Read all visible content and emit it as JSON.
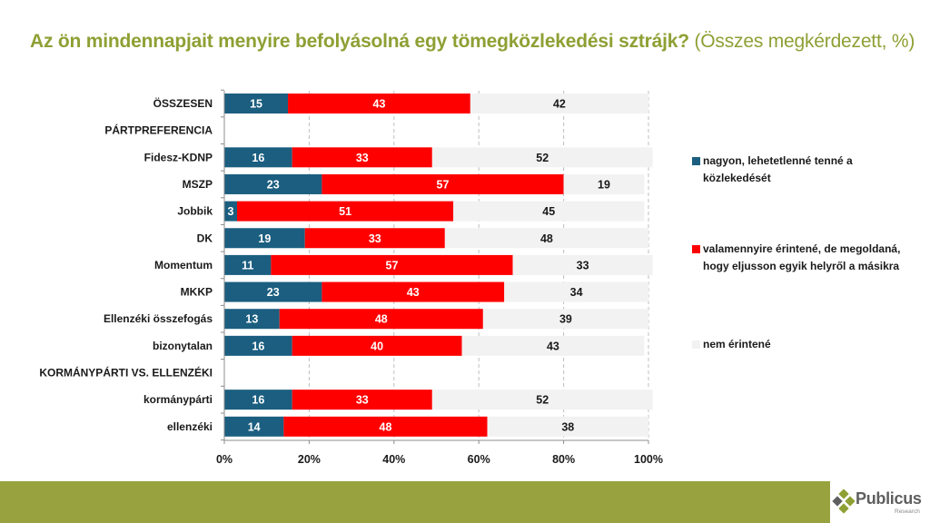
{
  "title": {
    "main": "Az ön mindennapjait menyire befolyásolná egy tömegközlekedési sztrájk?",
    "sub": " (Összes megkérdezett, %)"
  },
  "colors": {
    "title": "#8ea034",
    "series": [
      "#1b5e80",
      "#ff0000",
      "#f2f2f2"
    ],
    "footer": "#98a33f",
    "logo_green": "#8ea034",
    "logo_text": "#5f5f5f"
  },
  "legend": {
    "items": [
      {
        "label": "nagyon, lehetetlenné tenné a közlekedését"
      },
      {
        "label": "valamennyire érintené, de megoldaná, hogy eljusson egyik helyről a másikra"
      },
      {
        "label": "nem érintené"
      }
    ]
  },
  "logo": {
    "name": "Publicus",
    "tagline": "Research"
  },
  "chart_data": {
    "type": "bar",
    "orientation": "horizontal",
    "stacked": "percent",
    "title": "Az ön mindennapjait menyire befolyásolná egy tömegközlekedési sztrájk? (Összes megkérdezett, %)",
    "xlabel": "",
    "ylabel": "",
    "xlim": [
      0,
      100
    ],
    "x_ticks": [
      "0%",
      "20%",
      "40%",
      "60%",
      "80%",
      "100%"
    ],
    "grid": "vertical dashed",
    "legend_position": "right",
    "categories": [
      "ÖSSZESEN",
      "PÁRTPREFERENCIA",
      "Fidesz-KDNP",
      "MSZP",
      "Jobbik",
      "DK",
      "Momentum",
      "MKKP",
      "Ellenzéki összefogás",
      "bizonytalan",
      "KORMÁNYPÁRTI VS. ELLENZÉKI",
      "kormánypárti",
      "ellenzéki"
    ],
    "series": [
      {
        "name": "nagyon, lehetetlenné tenné a közlekedését",
        "values": [
          15,
          null,
          16,
          23,
          3,
          19,
          11,
          23,
          13,
          16,
          null,
          16,
          14
        ]
      },
      {
        "name": "valamennyire érintené, de megoldaná, hogy eljusson egyik helyről a másikra",
        "values": [
          43,
          null,
          33,
          57,
          51,
          33,
          57,
          43,
          48,
          40,
          null,
          33,
          48
        ]
      },
      {
        "name": "nem érintené",
        "values": [
          42,
          null,
          52,
          19,
          45,
          48,
          33,
          34,
          39,
          43,
          null,
          52,
          38
        ]
      }
    ]
  }
}
